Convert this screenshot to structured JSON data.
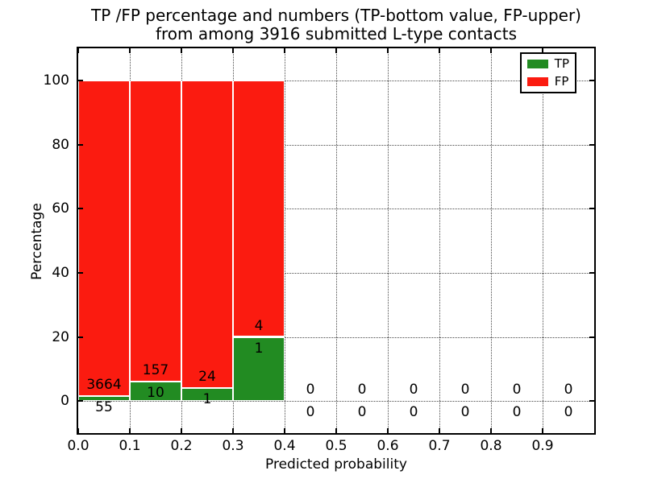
{
  "chart_data": {
    "type": "bar",
    "stacked": true,
    "title_line1": "TP /FP percentage and numbers (TP-bottom value, FP-upper)",
    "title_line2": "from among 3916 submitted L-type contacts",
    "total_submitted_contacts": 3916,
    "xlabel": "Predicted probability",
    "ylabel": "Percentage",
    "xlim": [
      0.0,
      1.0
    ],
    "ylim": [
      -10,
      110
    ],
    "x_ticks": [
      "0.0",
      "0.1",
      "0.2",
      "0.3",
      "0.4",
      "0.5",
      "0.6",
      "0.7",
      "0.8",
      "0.9"
    ],
    "y_ticks": [
      0,
      20,
      40,
      60,
      80,
      100
    ],
    "grid_style": "dotted",
    "legend_position": "upper right",
    "legend": [
      {
        "label": "TP",
        "color": "#228b22"
      },
      {
        "label": "FP",
        "color": "#fb1b10"
      }
    ],
    "colors": {
      "tp": "#228b22",
      "fp": "#fb1b10"
    },
    "bins": [
      {
        "range": [
          0.0,
          0.1
        ],
        "tp": 55,
        "fp": 3664,
        "tp_pct": 1.48,
        "fp_pct": 98.52
      },
      {
        "range": [
          0.1,
          0.2
        ],
        "tp": 10,
        "fp": 157,
        "tp_pct": 5.99,
        "fp_pct": 94.01
      },
      {
        "range": [
          0.2,
          0.3
        ],
        "tp": 1,
        "fp": 24,
        "tp_pct": 4.0,
        "fp_pct": 96.0
      },
      {
        "range": [
          0.3,
          0.4
        ],
        "tp": 1,
        "fp": 4,
        "tp_pct": 20.0,
        "fp_pct": 80.0
      },
      {
        "range": [
          0.4,
          0.5
        ],
        "tp": 0,
        "fp": 0,
        "tp_pct": 0,
        "fp_pct": 0
      },
      {
        "range": [
          0.5,
          0.6
        ],
        "tp": 0,
        "fp": 0,
        "tp_pct": 0,
        "fp_pct": 0
      },
      {
        "range": [
          0.6,
          0.7
        ],
        "tp": 0,
        "fp": 0,
        "tp_pct": 0,
        "fp_pct": 0
      },
      {
        "range": [
          0.7,
          0.8
        ],
        "tp": 0,
        "fp": 0,
        "tp_pct": 0,
        "fp_pct": 0
      },
      {
        "range": [
          0.8,
          0.9
        ],
        "tp": 0,
        "fp": 0,
        "tp_pct": 0,
        "fp_pct": 0
      },
      {
        "range": [
          0.9,
          1.0
        ],
        "tp": 0,
        "fp": 0,
        "tp_pct": 0,
        "fp_pct": 0
      }
    ]
  }
}
